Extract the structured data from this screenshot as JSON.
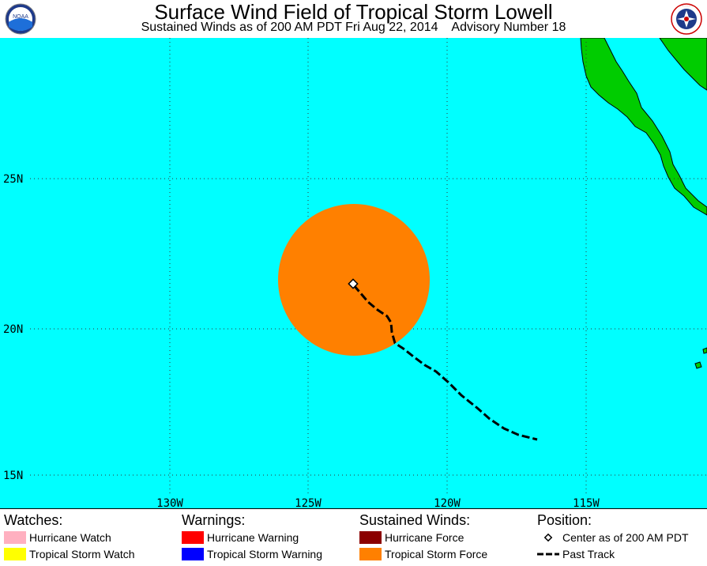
{
  "header": {
    "title": "Surface Wind Field of Tropical Storm Lowell",
    "subtitle": "Sustained Winds as of 200 AM PDT Fri Aug 22, 2014    Advisory Number 18",
    "left_logo_text": "NOAA",
    "right_logo_text": "NATIONAL WEATHER SERVICE"
  },
  "map": {
    "ocean_color": "#00FFFF",
    "land_color": "#00CC00",
    "lat_labels": [
      "25N",
      "20N",
      "15N"
    ],
    "lon_labels": [
      "130W",
      "125W",
      "120W",
      "115W"
    ],
    "storm": {
      "tropical_storm_force_color": "#FF8000",
      "center_symbol": "diamond-icon"
    }
  },
  "legend": {
    "watches": {
      "heading": "Watches:",
      "items": [
        {
          "label": "Hurricane Watch",
          "color": "#FFB0C0"
        },
        {
          "label": "Tropical Storm Watch",
          "color": "#FFFF00"
        }
      ]
    },
    "warnings": {
      "heading": "Warnings:",
      "items": [
        {
          "label": "Hurricane Warning",
          "color": "#FF0000"
        },
        {
          "label": "Tropical Storm Warning",
          "color": "#0000FF"
        }
      ]
    },
    "winds": {
      "heading": "Sustained Winds:",
      "items": [
        {
          "label": "Hurricane Force",
          "color": "#8B0000"
        },
        {
          "label": "Tropical Storm Force",
          "color": "#FF8000"
        }
      ]
    },
    "position": {
      "heading": "Position:",
      "center_label": "Center as of 200 AM PDT",
      "track_label": "Past Track"
    }
  }
}
